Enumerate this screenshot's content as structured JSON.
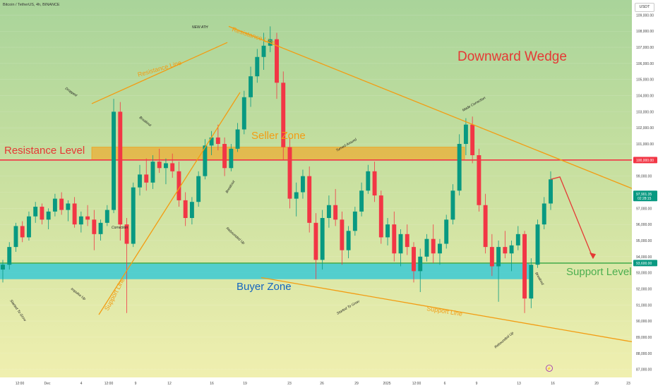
{
  "header": {
    "symbol_title": "Bitcoin / TetherUS, 4h, BINANCE",
    "currency": "USDT"
  },
  "chart_data": {
    "type": "candlestick",
    "ylim": [
      86500,
      109500
    ],
    "y_ticks": [
      "109,000.00",
      "108,000.00",
      "107,000.00",
      "106,000.00",
      "105,000.00",
      "104,000.00",
      "103,000.00",
      "102,000.00",
      "101,000.00",
      "100,000.00",
      "99,000.00",
      "98,000.00",
      "97,000.00",
      "96,000.00",
      "95,000.00",
      "94,000.00",
      "93,000.00",
      "92,000.00",
      "91,000.00",
      "90,000.00",
      "89,000.00",
      "88,000.00",
      "87,000.00"
    ],
    "x_ticks": [
      "12:00",
      "Dec",
      "4",
      "12:00",
      "9",
      "12",
      "16",
      "19",
      "23",
      "26",
      "29",
      "2025",
      "12:00",
      "6",
      "9",
      "13",
      "16",
      "20",
      "23"
    ],
    "price_badges": [
      {
        "label": "100,000.00",
        "color": "#f23645"
      },
      {
        "label": "97,901.35",
        "sub": "02:28:15",
        "color": "#089981"
      },
      {
        "label": "93,600.00",
        "color": "#089981"
      }
    ],
    "levels": [
      {
        "name": "Resistance Level",
        "price": 100000,
        "color": "#f23645"
      },
      {
        "name": "Support Level",
        "price": 93600,
        "color": "#4caf50"
      }
    ],
    "zones": [
      {
        "name": "Seller Zone",
        "top": 100800,
        "bottom": 100000,
        "color": "#f7a21b"
      },
      {
        "name": "Buyer Zone",
        "top": 93600,
        "bottom": 92600,
        "color": "#26c6da"
      }
    ],
    "title_text": "Downward Wedge",
    "labels": {
      "resistance_line": "Resistance Line",
      "support_line": "Support Line",
      "watermark_icon": "tradingview-logo"
    },
    "annotations": [
      "NEW ATH",
      "Dropped",
      "Breakout",
      "Correction",
      "Impulse Up",
      "Started To Grow",
      "Breakout",
      "Rebounded Up",
      "Turned Around",
      "Started To Grow",
      "Made Correction",
      "Rebounded Up",
      "Breakout"
    ],
    "projection": [
      [
        98950,
        1
      ],
      [
        93900,
        2
      ]
    ],
    "candles": [
      [
        93200,
        93800,
        92400,
        93500
      ],
      [
        93500,
        94900,
        93200,
        94600
      ],
      [
        94600,
        96100,
        94300,
        95900
      ],
      [
        95900,
        96200,
        94900,
        95200
      ],
      [
        95200,
        96800,
        95000,
        96500
      ],
      [
        96500,
        97400,
        96100,
        97100
      ],
      [
        97100,
        97300,
        96000,
        96300
      ],
      [
        96300,
        97000,
        95700,
        96800
      ],
      [
        96800,
        97900,
        96500,
        97600
      ],
      [
        97600,
        98000,
        96600,
        96900
      ],
      [
        96900,
        97500,
        96200,
        97300
      ],
      [
        97300,
        97700,
        95800,
        96000
      ],
      [
        96000,
        96800,
        95500,
        96500
      ],
      [
        96500,
        97200,
        95900,
        96300
      ],
      [
        96300,
        96900,
        94400,
        95400
      ],
      [
        95400,
        96300,
        95000,
        96100
      ],
      [
        96100,
        97200,
        95900,
        96900
      ],
      [
        96900,
        103800,
        96700,
        103000
      ],
      [
        103000,
        103600,
        95000,
        96000
      ],
      [
        96000,
        96400,
        90500,
        94800
      ],
      [
        94800,
        98600,
        94600,
        98300
      ],
      [
        98300,
        99700,
        97800,
        99100
      ],
      [
        99100,
        100100,
        98100,
        98600
      ],
      [
        98600,
        100300,
        98200,
        99900
      ],
      [
        99900,
        100700,
        99200,
        99500
      ],
      [
        99500,
        100100,
        98500,
        99800
      ],
      [
        99800,
        100400,
        98900,
        99300
      ],
      [
        99300,
        99900,
        97100,
        97500
      ],
      [
        97500,
        98000,
        95900,
        96400
      ],
      [
        96400,
        97700,
        96000,
        97400
      ],
      [
        97400,
        99300,
        97100,
        99000
      ],
      [
        99000,
        101300,
        98800,
        100900
      ],
      [
        100900,
        101800,
        100300,
        101400
      ],
      [
        101400,
        102200,
        100600,
        101000
      ],
      [
        101000,
        101400,
        99000,
        99500
      ],
      [
        99500,
        101000,
        99300,
        100700
      ],
      [
        100700,
        102300,
        100500,
        101900
      ],
      [
        101900,
        104300,
        101600,
        103900
      ],
      [
        103900,
        105800,
        103300,
        105200
      ],
      [
        105200,
        106900,
        104800,
        106400
      ],
      [
        106400,
        107900,
        105600,
        107100
      ],
      [
        107100,
        108300,
        106700,
        107500
      ],
      [
        107500,
        107900,
        103800,
        104800
      ],
      [
        104800,
        105500,
        100000,
        100800
      ],
      [
        100800,
        101400,
        97000,
        97600
      ],
      [
        97600,
        98600,
        96500,
        98000
      ],
      [
        98000,
        99400,
        97600,
        99000
      ],
      [
        99000,
        99600,
        95500,
        96100
      ],
      [
        96100,
        96700,
        92600,
        93800
      ],
      [
        93800,
        96900,
        93200,
        96400
      ],
      [
        96400,
        97800,
        95800,
        97200
      ],
      [
        97200,
        98200,
        95900,
        96300
      ],
      [
        96300,
        96800,
        93500,
        94400
      ],
      [
        94400,
        95900,
        93900,
        95600
      ],
      [
        95600,
        97100,
        95300,
        96800
      ],
      [
        96800,
        98600,
        96500,
        98100
      ],
      [
        98100,
        99700,
        97900,
        99300
      ],
      [
        99300,
        99900,
        97400,
        97800
      ],
      [
        97800,
        98100,
        94800,
        95200
      ],
      [
        95200,
        96400,
        94700,
        96000
      ],
      [
        96000,
        96800,
        93700,
        94200
      ],
      [
        94200,
        95700,
        93400,
        95400
      ],
      [
        95400,
        96000,
        94100,
        94600
      ],
      [
        94600,
        94900,
        92400,
        93100
      ],
      [
        93100,
        94500,
        91800,
        94000
      ],
      [
        94000,
        95400,
        93700,
        95100
      ],
      [
        95100,
        96000,
        93600,
        94200
      ],
      [
        94200,
        95100,
        93500,
        94800
      ],
      [
        94800,
        96600,
        94500,
        96300
      ],
      [
        96300,
        98500,
        96000,
        98100
      ],
      [
        98100,
        101600,
        97800,
        101000
      ],
      [
        101000,
        102600,
        100300,
        102200
      ],
      [
        102200,
        102700,
        99800,
        100300
      ],
      [
        100300,
        100700,
        96800,
        97200
      ],
      [
        97200,
        97900,
        94200,
        94600
      ],
      [
        94600,
        95400,
        92800,
        93400
      ],
      [
        93400,
        95000,
        91200,
        94600
      ],
      [
        94600,
        95600,
        93900,
        94200
      ],
      [
        94200,
        95000,
        93100,
        94700
      ],
      [
        94700,
        95900,
        94400,
        95400
      ],
      [
        95400,
        95600,
        90500,
        91400
      ],
      [
        91400,
        93900,
        90800,
        93500
      ],
      [
        93500,
        96300,
        93300,
        96000
      ],
      [
        96000,
        97700,
        95700,
        97300
      ],
      [
        97300,
        99300,
        96900,
        98800
      ]
    ]
  }
}
